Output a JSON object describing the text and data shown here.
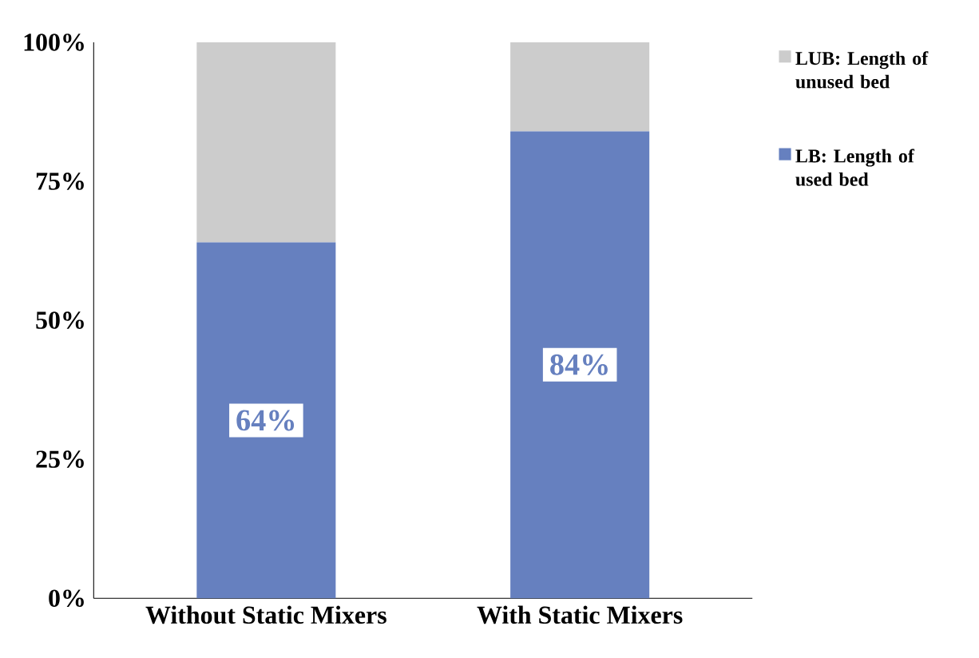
{
  "chart_data": {
    "type": "bar",
    "stacked": true,
    "categories": [
      "Without Static Mixers",
      "With Static Mixers"
    ],
    "series": [
      {
        "name": "LB: Length of used bed",
        "color": "#6680bf",
        "values": [
          64,
          84
        ],
        "value_labels": [
          "64%",
          "84%"
        ]
      },
      {
        "name": "LUB: Length of unused bed",
        "color": "#cccccc",
        "values": [
          36,
          16
        ]
      }
    ],
    "ylim": [
      0,
      100
    ],
    "yticks": [
      {
        "value": 0,
        "label": "0%"
      },
      {
        "value": 25,
        "label": "25%"
      },
      {
        "value": 50,
        "label": "50%"
      },
      {
        "value": 75,
        "label": "75%"
      },
      {
        "value": 100,
        "label": "100%"
      }
    ],
    "grid": false,
    "legend": "right"
  }
}
